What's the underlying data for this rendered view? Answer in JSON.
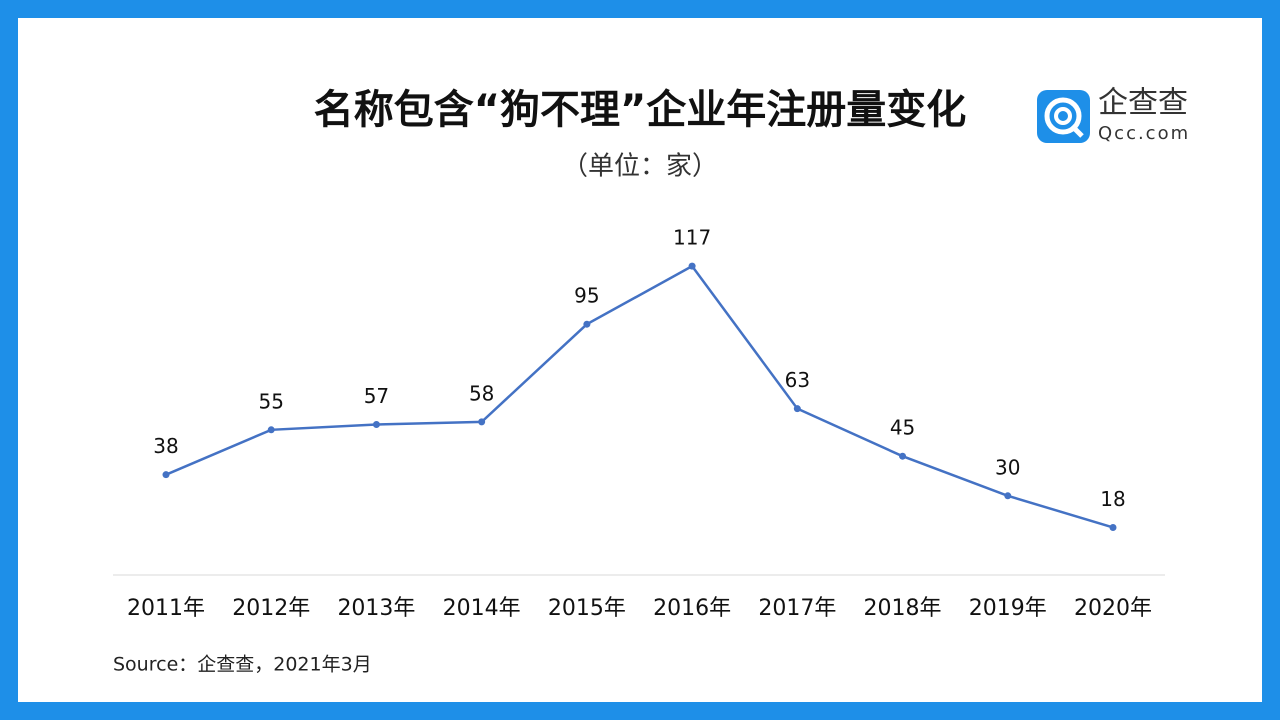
{
  "chart_data": {
    "type": "line",
    "title": "名称包含“狗不理”企业年注册量变化",
    "subtitle": "（单位：家）",
    "logo_name": "企查查",
    "logo_domain": "Qcc.com",
    "source": "Source：企查查，2021年3月",
    "categories": [
      "2011年",
      "2012年",
      "2013年",
      "2014年",
      "2015年",
      "2016年",
      "2017年",
      "2018年",
      "2019年",
      "2020年"
    ],
    "series": [
      {
        "color": "#4472c4",
        "values": [
          38,
          55,
          57,
          58,
          95,
          117,
          63,
          45,
          30,
          18
        ]
      }
    ],
    "ylim": [
      0,
      140
    ]
  }
}
